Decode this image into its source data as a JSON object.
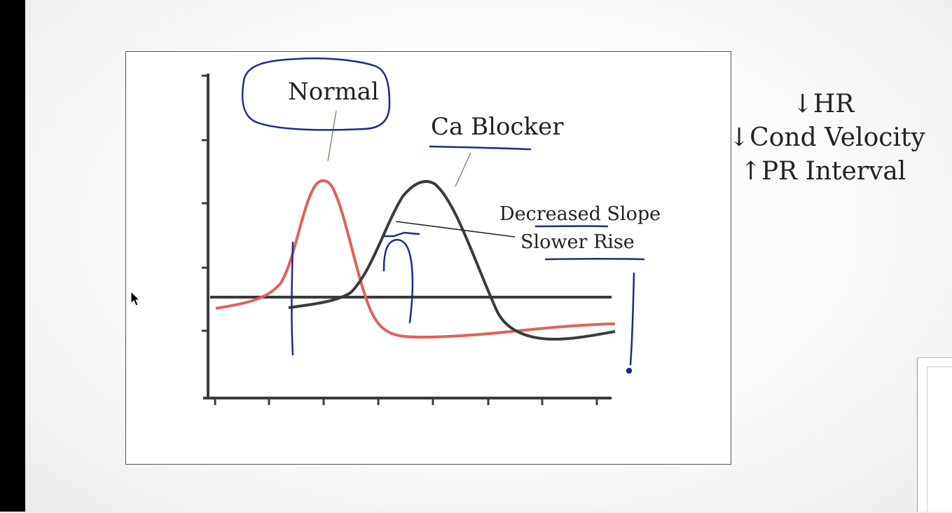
{
  "diagram": {
    "labels": {
      "normal": "Normal",
      "ca_blocker": "Ca Blocker",
      "decreased_slope": "Decreased Slope",
      "slower_rise": "Slower Rise"
    },
    "colors": {
      "normal_curve": "#e0605e",
      "ca_blocker_curve": "#3a3a3a",
      "ink_annotation": "#1a2a8c"
    }
  },
  "effects": [
    "↓HR",
    "↓Cond Velocity",
    "↑PR Interval"
  ],
  "icons": [
    "cursor-pointer-icon"
  ]
}
